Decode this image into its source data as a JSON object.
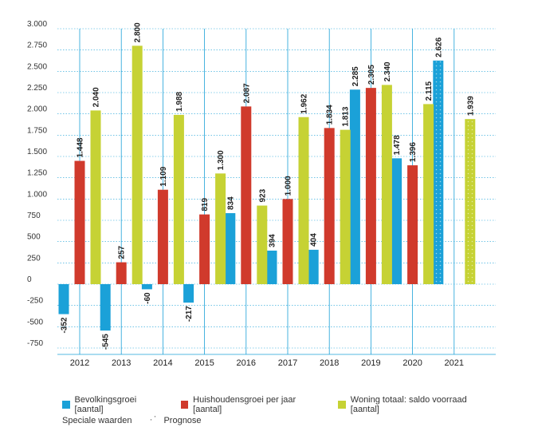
{
  "chart_data": {
    "type": "bar",
    "categories": [
      "2012",
      "2013",
      "2014",
      "2015",
      "2016",
      "2017",
      "2018",
      "2019",
      "2020",
      "2021"
    ],
    "series": [
      {
        "name": "Bevolkingsgroei [aantal]",
        "color": "#1ba1d8",
        "values": [
          -352,
          -545,
          -60,
          -217,
          834,
          394,
          404,
          2285,
          1478,
          2626
        ],
        "labels": [
          "-352",
          "-545",
          "-60",
          "-217",
          "834",
          "394",
          "404",
          "2.285",
          "1.478",
          "2.626"
        ],
        "prognose_from_index": 9
      },
      {
        "name": "Huishoudensgroei per jaar [aantal]",
        "color": "#d03a2c",
        "values": [
          1448,
          257,
          1109,
          819,
          2087,
          1000,
          1834,
          2305,
          1396,
          null
        ],
        "labels": [
          "1.448",
          "257",
          "1.109",
          "819",
          "2.087",
          "1.000",
          "1.834",
          "2.305",
          "1.396",
          ""
        ]
      },
      {
        "name": "Woning totaal: saldo voorraad [aantal]",
        "color": "#c6d234",
        "values": [
          2040,
          2800,
          1988,
          1300,
          923,
          1962,
          1813,
          2340,
          2115,
          1939
        ],
        "labels": [
          "2.040",
          "2.800",
          "1.988",
          "1.300",
          "923",
          "1.962",
          "1.813",
          "2.340",
          "2.115",
          "1.939"
        ],
        "prognose_from_index": 9
      }
    ],
    "ylim": [
      -750,
      3000
    ],
    "yticks": [
      3000,
      2750,
      2500,
      2250,
      2000,
      1750,
      1500,
      1250,
      1000,
      750,
      500,
      250,
      0,
      -250,
      -500,
      -750
    ],
    "ytick_labels": [
      "3.000",
      "2.750",
      "2.500",
      "2.250",
      "2.000",
      "1.750",
      "1.500",
      "1.250",
      "1.000",
      "750",
      "500",
      "250",
      "0",
      "-250",
      "-500",
      "-750"
    ],
    "grid": "horizontal dashed and vertical solid",
    "legend_position": "bottom",
    "legend_extra": [
      "Speciale waarden",
      "Prognose"
    ]
  }
}
